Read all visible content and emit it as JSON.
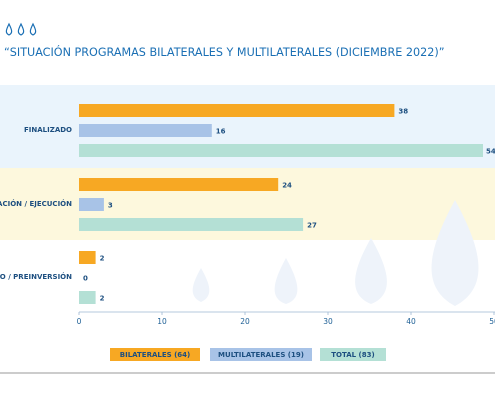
{
  "chart_data": {
    "type": "bar",
    "orientation": "horizontal",
    "title": "“SITUACIÓN PROGRAMAS BILATERALES Y MULTILATERALES (DICIEMBRE 2022)”",
    "categories": [
      "FINALIZADO",
      "IMPLEMENTACIÓN / EJECUCIÓN",
      "DISEÑO / PREINVERSIÓN"
    ],
    "series": [
      {
        "name": "BILATERALES (64)",
        "color": "#f7a823",
        "values": [
          38,
          24,
          2
        ]
      },
      {
        "name": "MULTILATERALES (19)",
        "color": "#a8c3e7",
        "values": [
          16,
          3,
          0
        ]
      },
      {
        "name": "TOTAL (83)",
        "color": "#b4e0d5",
        "values": [
          54,
          27,
          2
        ]
      }
    ],
    "xlim": [
      0,
      50
    ],
    "xticks": [
      0,
      10,
      20,
      30,
      40,
      50
    ]
  }
}
